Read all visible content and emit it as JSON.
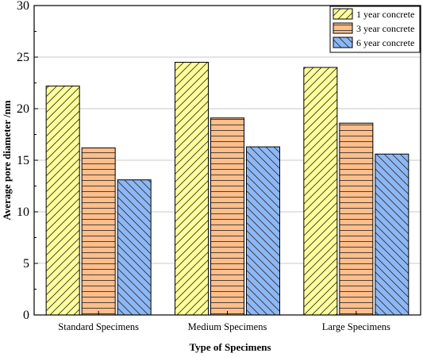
{
  "chart_data": {
    "type": "bar",
    "title": "",
    "xlabel": "Type of Specimens",
    "ylabel": "Average pore diameter /nm",
    "categories": [
      "Standard Specimens",
      "Medium Specimens",
      "Large Specimens"
    ],
    "series": [
      {
        "name": "1 year concrete",
        "values": [
          22.2,
          24.5,
          24.0
        ],
        "color": "#FFFF99",
        "pattern": "diagonal"
      },
      {
        "name": "3 year concrete",
        "values": [
          16.2,
          19.1,
          18.6
        ],
        "color": "#FFBE8A",
        "pattern": "horizontal"
      },
      {
        "name": "6 year concrete",
        "values": [
          13.1,
          16.3,
          15.6
        ],
        "color": "#8DB7F5",
        "pattern": "backdiagonal"
      }
    ],
    "ylim": [
      0,
      30
    ],
    "yticks": [
      "0",
      "5",
      "10",
      "15",
      "20",
      "25",
      "30"
    ],
    "grid": true,
    "legend_position": "top-right"
  }
}
